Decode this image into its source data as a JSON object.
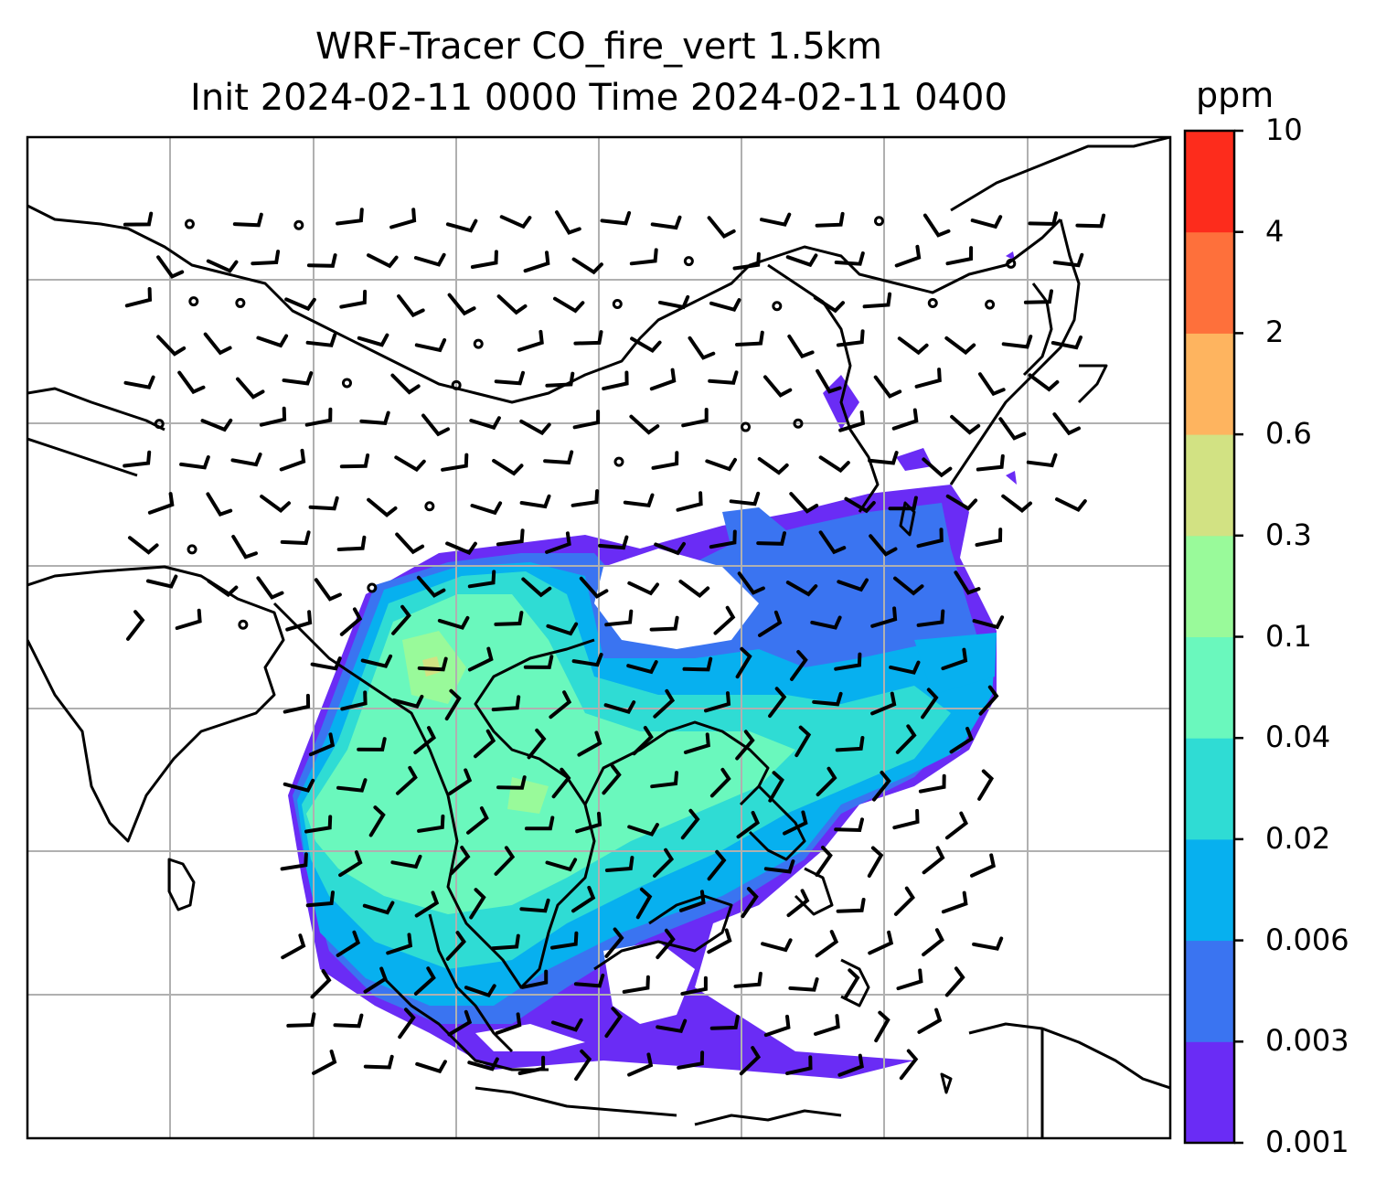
{
  "title": {
    "line1": "WRF-Tracer CO_fire_vert 1.5km",
    "line2": "Init 2024-02-11 0000 Time 2024-02-11 0400"
  },
  "colorbar": {
    "units": "ppm",
    "levels": [
      "0.001",
      "0.003",
      "0.006",
      "0.02",
      "0.04",
      "0.1",
      "0.3",
      "0.6",
      "2",
      "4",
      "10"
    ],
    "colors": [
      "#6a2cf5",
      "#3a74f1",
      "#07b0ef",
      "#2fdcd4",
      "#6af8bd",
      "#99fa9a",
      "#d2e283",
      "#feb45f",
      "#fe703b",
      "#fd2c1c"
    ]
  },
  "map": {
    "background": "#ffffff",
    "gridlines": true,
    "coastline_color": "#000000"
  }
}
